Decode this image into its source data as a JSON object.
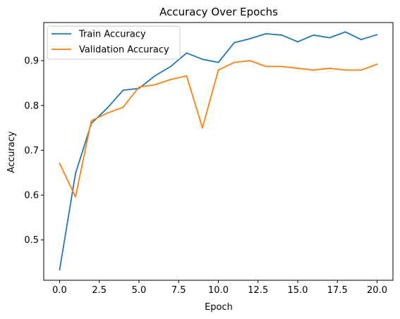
{
  "chart_data": {
    "type": "line",
    "title": "Accuracy Over Epochs",
    "xlabel": "Epoch",
    "ylabel": "Accuracy",
    "xlim": [
      -1.0,
      21.0
    ],
    "ylim": [
      0.41,
      0.985
    ],
    "xticks": [
      0.0,
      2.5,
      5.0,
      7.5,
      10.0,
      12.5,
      15.0,
      17.5,
      20.0
    ],
    "xtick_labels": [
      "0.0",
      "2.5",
      "5.0",
      "7.5",
      "10.0",
      "12.5",
      "15.0",
      "17.5",
      "20.0"
    ],
    "yticks": [
      0.5,
      0.6,
      0.7,
      0.8,
      0.9
    ],
    "ytick_labels": [
      "0.5",
      "0.6",
      "0.7",
      "0.8",
      "0.9"
    ],
    "grid": false,
    "legend_position": "top-left",
    "x": [
      0,
      1,
      2,
      3,
      4,
      5,
      6,
      7,
      8,
      9,
      10,
      11,
      12,
      13,
      14,
      15,
      16,
      17,
      18,
      19,
      20
    ],
    "series": [
      {
        "name": "Train Accuracy",
        "color": "#1f77b4",
        "values": [
          0.433,
          0.648,
          0.76,
          0.794,
          0.834,
          0.838,
          0.866,
          0.887,
          0.917,
          0.903,
          0.896,
          0.94,
          0.949,
          0.96,
          0.957,
          0.942,
          0.957,
          0.951,
          0.964,
          0.947,
          0.958
        ]
      },
      {
        "name": "Validation Accuracy",
        "color": "#ff7f0e",
        "values": [
          0.671,
          0.596,
          0.766,
          0.783,
          0.796,
          0.841,
          0.846,
          0.858,
          0.866,
          0.75,
          0.879,
          0.896,
          0.9,
          0.887,
          0.887,
          0.883,
          0.879,
          0.883,
          0.879,
          0.879,
          0.892
        ]
      }
    ]
  }
}
